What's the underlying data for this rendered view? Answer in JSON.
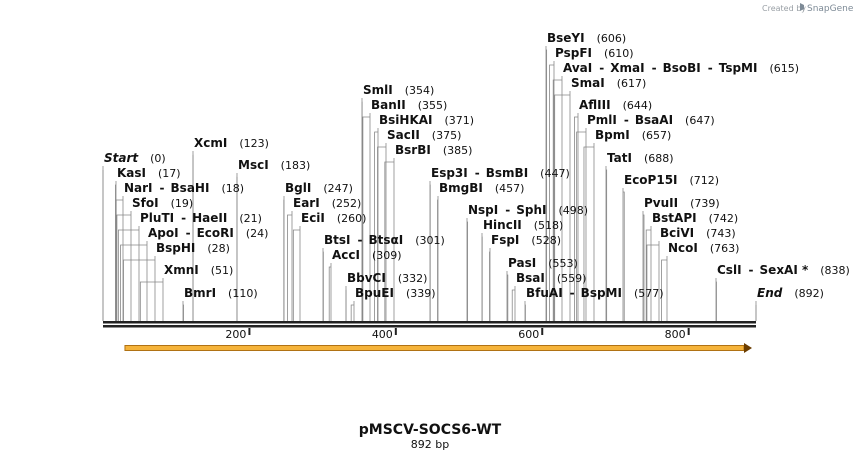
{
  "branding": {
    "created_by": "Created by",
    "app": "SnapGene",
    "icon": "snapgene-logo-icon"
  },
  "plasmid": {
    "name": "pMSCV-SOCS6-WT",
    "length_label": "892 bp",
    "length": 892
  },
  "axis": {
    "ticks": [
      200,
      400,
      600,
      800
    ]
  },
  "feature": {
    "name": "orf-arrow",
    "start": 30,
    "end": 892,
    "direction": "forward",
    "fill": "#f5b33a",
    "stroke": "#b07214"
  },
  "sites": [
    {
      "labels": [
        "Start"
      ],
      "pos_label": "(0)",
      "pos": 0,
      "italic": true
    },
    {
      "labels": [
        "KasI"
      ],
      "pos_label": "(17)",
      "pos": 17
    },
    {
      "labels": [
        "NarI",
        "BsaHI"
      ],
      "pos_label": "(18)",
      "pos": 18
    },
    {
      "labels": [
        "SfoI"
      ],
      "pos_label": "(19)",
      "pos": 19
    },
    {
      "labels": [
        "PluTI",
        "HaeII"
      ],
      "pos_label": "(21)",
      "pos": 21
    },
    {
      "labels": [
        "ApoI",
        "EcoRI"
      ],
      "pos_label": "(24)",
      "pos": 24
    },
    {
      "labels": [
        "BspHI"
      ],
      "pos_label": "(28)",
      "pos": 28
    },
    {
      "labels": [
        "XmnI"
      ],
      "pos_label": "(51)",
      "pos": 51
    },
    {
      "labels": [
        "BmrI"
      ],
      "pos_label": "(110)",
      "pos": 110
    },
    {
      "labels": [
        "XcmI"
      ],
      "pos_label": "(123)",
      "pos": 123
    },
    {
      "labels": [
        "MscI"
      ],
      "pos_label": "(183)",
      "pos": 183
    },
    {
      "labels": [
        "BglI"
      ],
      "pos_label": "(247)",
      "pos": 247
    },
    {
      "labels": [
        "EarI"
      ],
      "pos_label": "(252)",
      "pos": 252
    },
    {
      "labels": [
        "EciI"
      ],
      "pos_label": "(260)",
      "pos": 260
    },
    {
      "labels": [
        "BtsI",
        "BtsαI"
      ],
      "pos_label": "(301)",
      "pos": 301
    },
    {
      "labels": [
        "AccI"
      ],
      "pos_label": "(309)",
      "pos": 309
    },
    {
      "labels": [
        "BbvCI"
      ],
      "pos_label": "(332)",
      "pos": 332
    },
    {
      "labels": [
        "BpuEI"
      ],
      "pos_label": "(339)",
      "pos": 339
    },
    {
      "labels": [
        "SmlI"
      ],
      "pos_label": "(354)",
      "pos": 354
    },
    {
      "labels": [
        "BanII"
      ],
      "pos_label": "(355)",
      "pos": 355
    },
    {
      "labels": [
        "BsiHKAI"
      ],
      "pos_label": "(371)",
      "pos": 371
    },
    {
      "labels": [
        "SacII"
      ],
      "pos_label": "(375)",
      "pos": 375
    },
    {
      "labels": [
        "BsrBI"
      ],
      "pos_label": "(385)",
      "pos": 385
    },
    {
      "labels": [
        "Esp3I",
        "BsmBI"
      ],
      "pos_label": "(447)",
      "pos": 447
    },
    {
      "labels": [
        "BmgBI"
      ],
      "pos_label": "(457)",
      "pos": 457
    },
    {
      "labels": [
        "NspI",
        "SphI"
      ],
      "pos_label": "(498)",
      "pos": 498
    },
    {
      "labels": [
        "HincII"
      ],
      "pos_label": "(518)",
      "pos": 518
    },
    {
      "labels": [
        "FspI"
      ],
      "pos_label": "(528)",
      "pos": 528
    },
    {
      "labels": [
        "PasI"
      ],
      "pos_label": "(553)",
      "pos": 553
    },
    {
      "labels": [
        "BsaI"
      ],
      "pos_label": "(559)",
      "pos": 559
    },
    {
      "labels": [
        "BfuAI",
        "BspMI"
      ],
      "pos_label": "(577)",
      "pos": 577
    },
    {
      "labels": [
        "BseYI"
      ],
      "pos_label": "(606)",
      "pos": 606
    },
    {
      "labels": [
        "PspFI"
      ],
      "pos_label": "(610)",
      "pos": 610
    },
    {
      "labels": [
        "AvaI",
        "XmaI",
        "BsoBI",
        "TspMI"
      ],
      "pos_label": "(615)",
      "pos": 615
    },
    {
      "labels": [
        "SmaI"
      ],
      "pos_label": "(617)",
      "pos": 617
    },
    {
      "labels": [
        "AflIII"
      ],
      "pos_label": "(644)",
      "pos": 644
    },
    {
      "labels": [
        "PmlI",
        "BsaAI"
      ],
      "pos_label": "(647)",
      "pos": 647
    },
    {
      "labels": [
        "BpmI"
      ],
      "pos_label": "(657)",
      "pos": 657
    },
    {
      "labels": [
        "TatI"
      ],
      "pos_label": "(688)",
      "pos": 688
    },
    {
      "labels": [
        "EcoP15I"
      ],
      "pos_label": "(712)",
      "pos": 712
    },
    {
      "labels": [
        "PvuII"
      ],
      "pos_label": "(739)",
      "pos": 739
    },
    {
      "labels": [
        "BstAPI"
      ],
      "pos_label": "(742)",
      "pos": 742
    },
    {
      "labels": [
        "BciVI"
      ],
      "pos_label": "(743)",
      "pos": 743
    },
    {
      "labels": [
        "NcoI"
      ],
      "pos_label": "(763)",
      "pos": 763
    },
    {
      "labels": [
        "CslI",
        "SexAI *"
      ],
      "pos_label": "(838)",
      "pos": 838
    },
    {
      "labels": [
        "End"
      ],
      "pos_label": "(892)",
      "pos": 892,
      "italic": true
    }
  ]
}
